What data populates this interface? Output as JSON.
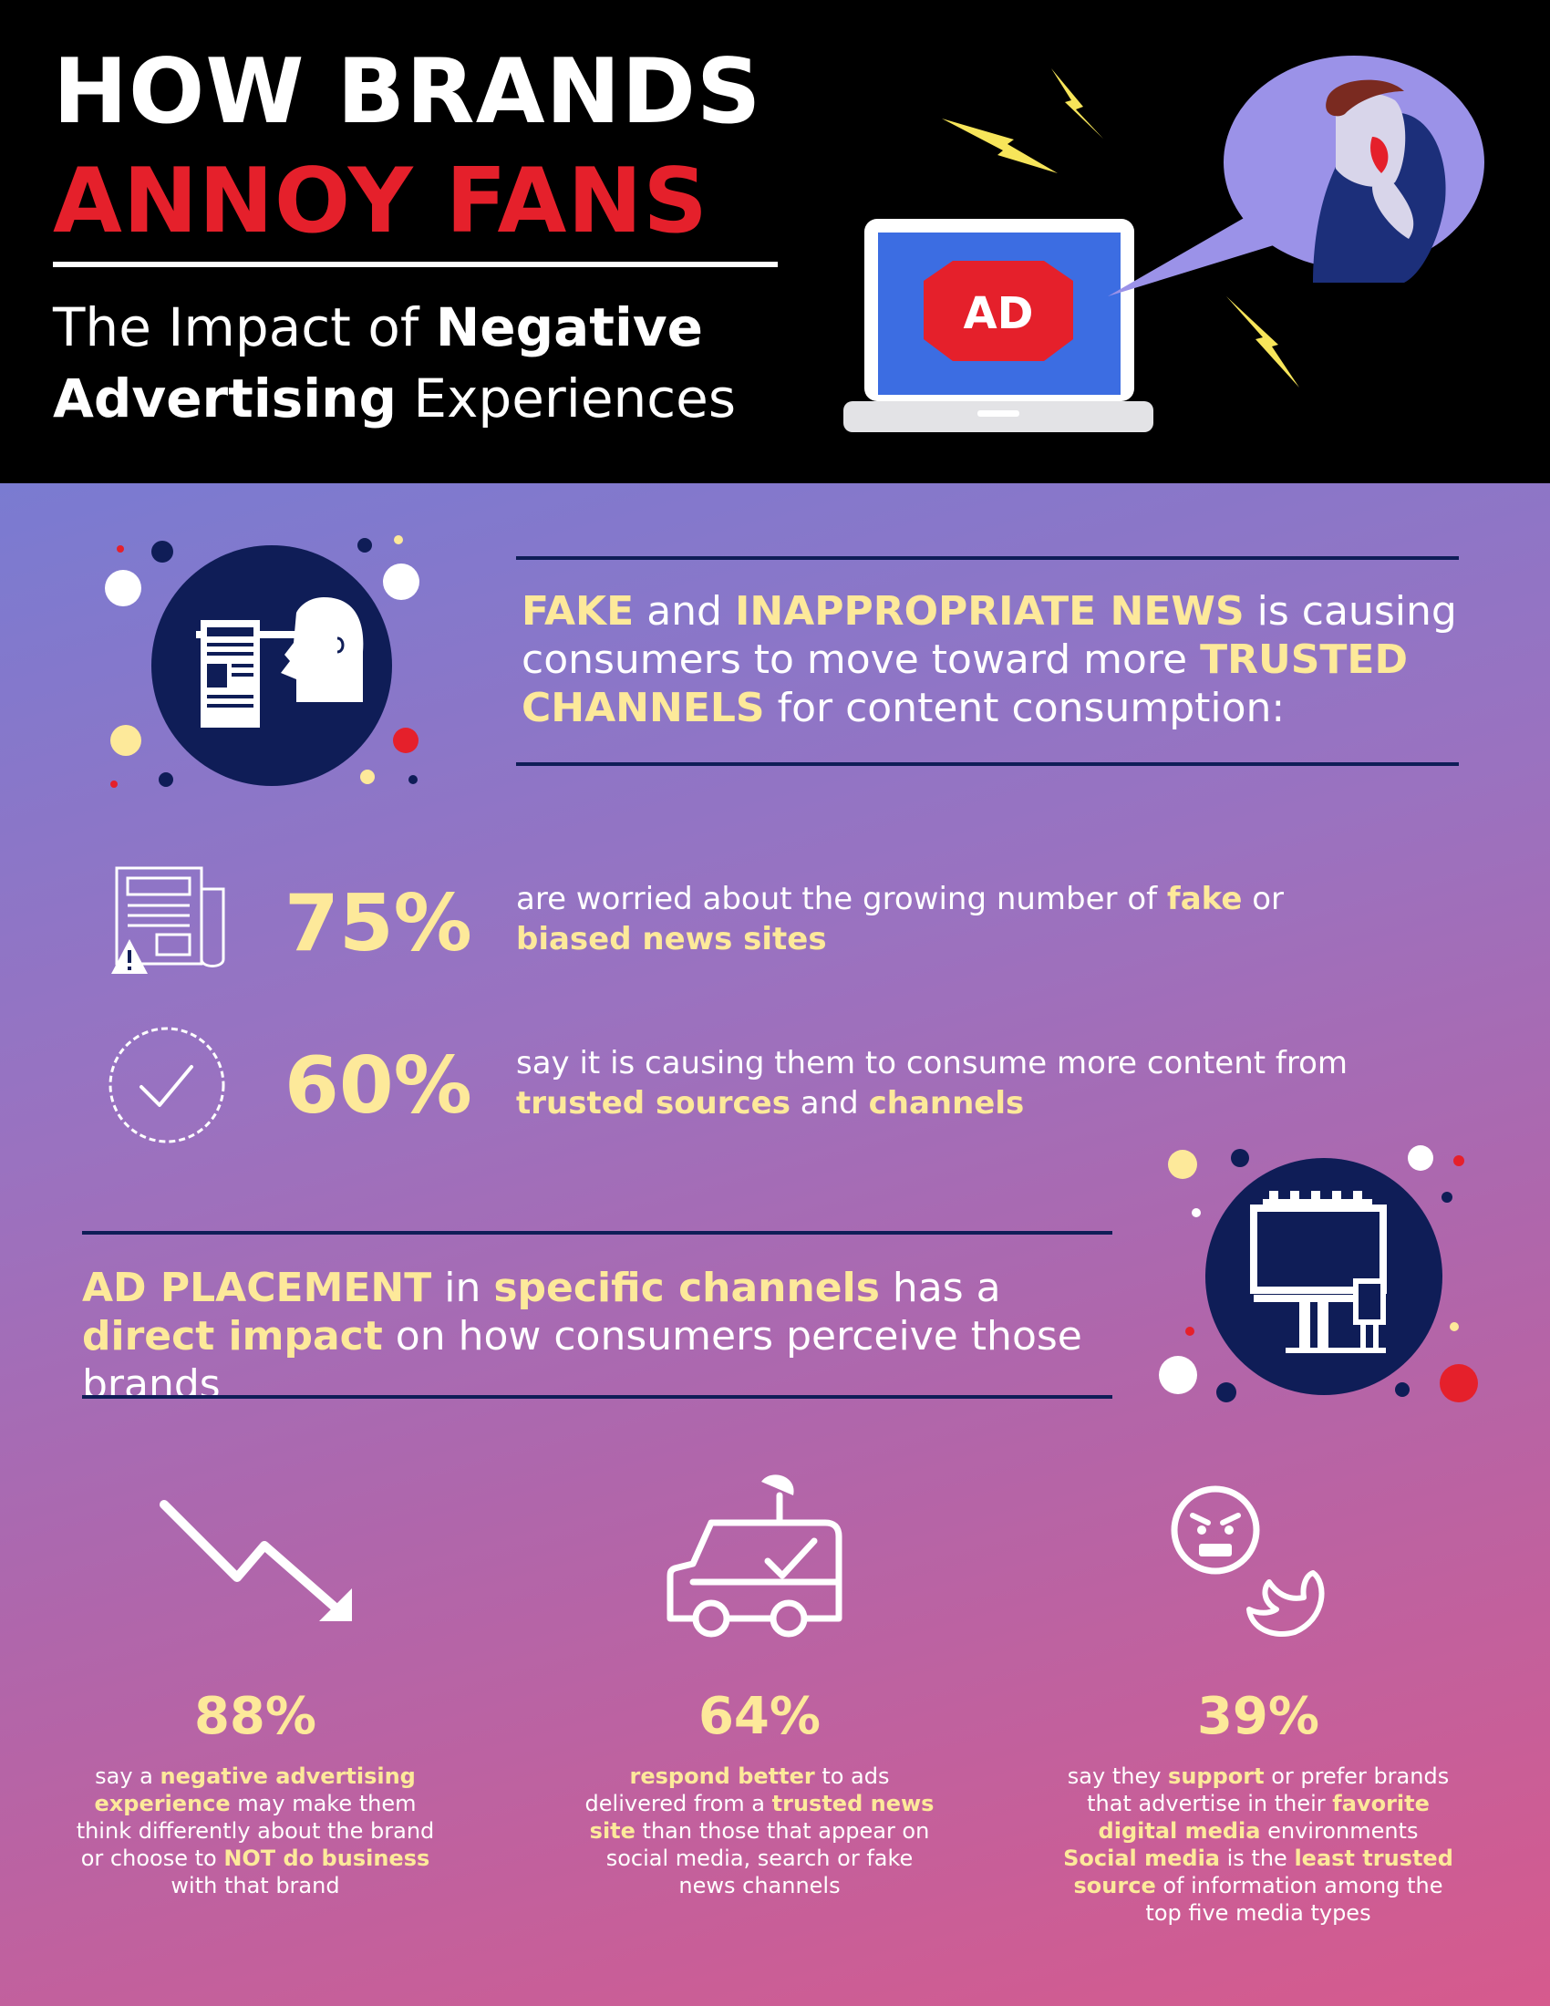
{
  "header": {
    "title_line1": "HOW BRANDS",
    "title_line2": "ANNOY FANS",
    "subtitle_part1": "The Impact of ",
    "subtitle_bold1": "Negative",
    "subtitle_bold2": "Advertising",
    "subtitle_part2": " Experiences",
    "ad_label": "AD"
  },
  "section1": {
    "lead": {
      "b1": "FAKE",
      "t1": " and ",
      "b2": "INAPPROPRIATE NEWS",
      "t2": " is causing consumers to move toward more ",
      "b3": "TRUSTED CHANNELS",
      "t3": " for content consumption:"
    },
    "stats": [
      {
        "pct": "75%",
        "t1": "are worried about the growing number of ",
        "b1": "fake",
        "t2": " or ",
        "b2": "biased news sites",
        "t3": ""
      },
      {
        "pct": "60%",
        "t1": "say it is causing them to consume more content from ",
        "b1": "trusted sources",
        "t2": " and ",
        "b2": "channels",
        "t3": ""
      }
    ]
  },
  "section2": {
    "lead": {
      "b1": "AD PLACEMENT",
      "t1": " in ",
      "b2": "specific channels",
      "t2": " has a ",
      "b3": "direct impact",
      "t3": " on how consumers perceive those brands"
    }
  },
  "columns": [
    {
      "pct": "88%",
      "t1": "say a ",
      "b1": "negative advertising experience",
      "t2": " may make them think differently about the brand or choose to ",
      "b2": "NOT do business",
      "t3": " with that brand"
    },
    {
      "pct": "64%",
      "t1": "",
      "b1": "respond better",
      "t2": " to ads delivered from a ",
      "b2": "trusted news site",
      "t3": " than those that appear on social media, search or fake news channels"
    },
    {
      "pct": "39%",
      "t1": "say they ",
      "b1": "support",
      "t2": " or prefer brands that advertise in their ",
      "b2": "favorite digital media",
      "t3": " environments",
      "b3": "Social media",
      "t4": " is the ",
      "b4": "least trusted source",
      "t5": " of information among the top five media types"
    }
  ],
  "colors": {
    "accent_yellow": "#fde99a",
    "accent_red": "#e5202b",
    "navy": "#0f1d57"
  },
  "icons": [
    "lightning-icon",
    "laptop-ad-icon",
    "angry-man-icon",
    "liar-news-icon",
    "newspaper-warning-icon",
    "check-badge-icon",
    "billboard-icon",
    "trend-down-icon",
    "news-van-icon",
    "angry-face-icon",
    "bird-icon"
  ]
}
